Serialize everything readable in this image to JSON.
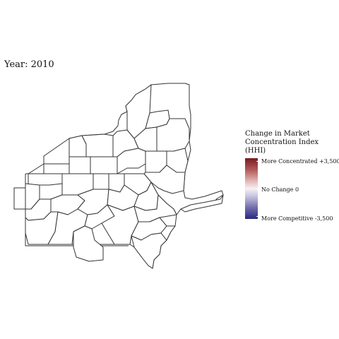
{
  "header": {
    "year_text": "Year: 2010"
  },
  "legend": {
    "title_lines": [
      "Change in Market",
      "Concentration Index",
      "(HHI)"
    ],
    "top_label": "More Concentrated +3,500",
    "mid_label": "No Change 0",
    "bottom_label": "More Competitive -3,500",
    "colors": {
      "high": "#7a1a1e",
      "mid": "#f8f0f2",
      "low": "#2b2880"
    },
    "range": [
      -3500,
      3500
    ]
  },
  "map": {
    "fill": "#ffffff",
    "stroke": "#333333",
    "region_count": 30
  }
}
